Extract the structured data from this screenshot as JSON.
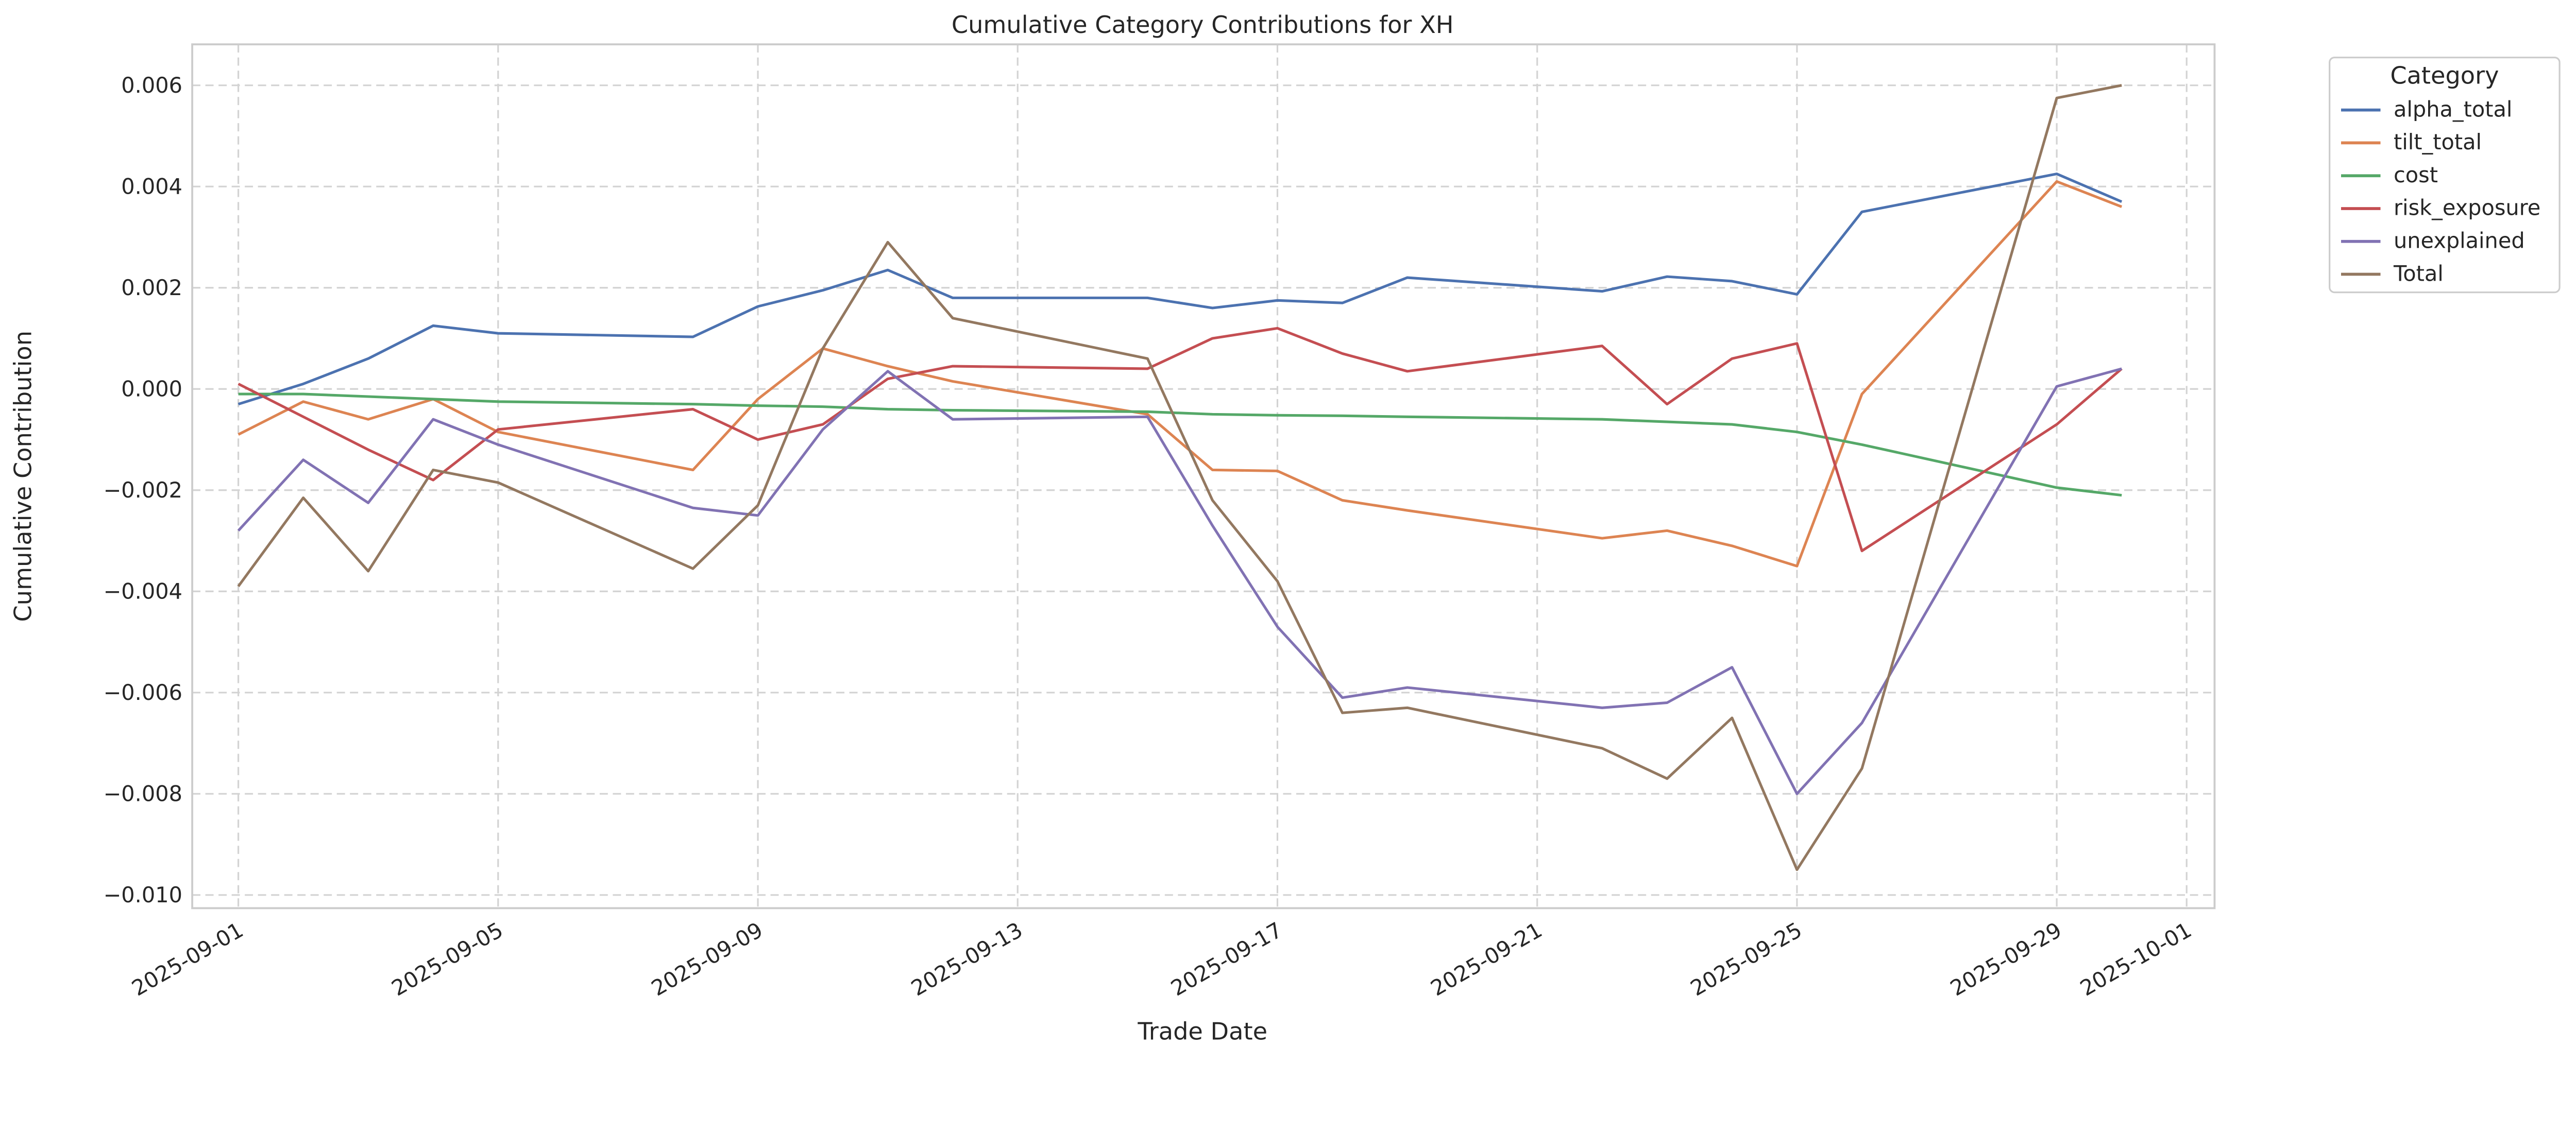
{
  "chart_data": {
    "type": "line",
    "title": "Cumulative Category Contributions for XH",
    "xlabel": "Trade Date",
    "ylabel": "Cumulative Contribution",
    "ylim": [
      -0.01026,
      0.00681
    ],
    "xlim": [
      "2025-08-31",
      "2025-10-01"
    ],
    "grid": true,
    "legend": {
      "title": "Category",
      "placement": "outside-top-right"
    },
    "x_ticks": [
      "2025-09-01",
      "2025-09-05",
      "2025-09-09",
      "2025-09-13",
      "2025-09-17",
      "2025-09-21",
      "2025-09-25",
      "2025-09-29",
      "2025-10-01"
    ],
    "y_ticks": [
      0.006,
      0.004,
      0.002,
      0.0,
      -0.002,
      -0.004,
      -0.006,
      -0.008,
      -0.01
    ],
    "y_tick_labels": [
      "0.006",
      "0.004",
      "0.002",
      "0.000",
      "−0.002",
      "−0.004",
      "−0.006",
      "−0.008",
      "−0.010"
    ],
    "x": [
      "2025-09-01",
      "2025-09-02",
      "2025-09-03",
      "2025-09-04",
      "2025-09-05",
      "2025-09-08",
      "2025-09-09",
      "2025-09-10",
      "2025-09-11",
      "2025-09-12",
      "2025-09-15",
      "2025-09-16",
      "2025-09-17",
      "2025-09-18",
      "2025-09-19",
      "2025-09-22",
      "2025-09-23",
      "2025-09-24",
      "2025-09-25",
      "2025-09-26",
      "2025-09-29",
      "2025-09-30"
    ],
    "series": [
      {
        "name": "alpha_total",
        "color": "#4c72b0",
        "values": [
          -0.0003,
          0.0001,
          0.0006,
          0.00125,
          0.0011,
          0.00103,
          0.00163,
          0.00195,
          0.00235,
          0.0018,
          0.0018,
          0.0016,
          0.00175,
          0.0017,
          0.0022,
          0.00193,
          0.00222,
          0.00213,
          0.00187,
          0.0035,
          0.00425,
          0.0037
        ]
      },
      {
        "name": "tilt_total",
        "color": "#dd8452",
        "values": [
          -0.0009,
          -0.00025,
          -0.0006,
          -0.0002,
          -0.00085,
          -0.0016,
          -0.0002,
          0.0008,
          0.00045,
          0.00015,
          -0.0005,
          -0.0016,
          -0.00162,
          -0.0022,
          -0.0024,
          -0.00295,
          -0.0028,
          -0.0031,
          -0.0035,
          -0.0001,
          0.0041,
          0.0036
        ]
      },
      {
        "name": "cost",
        "color": "#55a868",
        "values": [
          -0.0001,
          -0.0001,
          -0.00015,
          -0.0002,
          -0.00025,
          -0.0003,
          -0.00033,
          -0.00035,
          -0.0004,
          -0.00042,
          -0.00045,
          -0.0005,
          -0.00052,
          -0.00053,
          -0.00055,
          -0.0006,
          -0.00065,
          -0.0007,
          -0.00085,
          -0.0011,
          -0.00195,
          -0.0021
        ]
      },
      {
        "name": "risk_exposure",
        "color": "#c44e52",
        "values": [
          0.0001,
          -0.00055,
          -0.0012,
          -0.0018,
          -0.0008,
          -0.0004,
          -0.001,
          -0.0007,
          0.0002,
          0.00045,
          0.0004,
          0.001,
          0.0012,
          0.0007,
          0.00035,
          0.00085,
          -0.0003,
          0.0006,
          0.0009,
          -0.0032,
          -0.0007,
          0.0004
        ]
      },
      {
        "name": "unexplained",
        "color": "#8172b3",
        "values": [
          -0.0028,
          -0.0014,
          -0.00225,
          -0.0006,
          -0.0011,
          -0.00235,
          -0.0025,
          -0.0008,
          0.00035,
          -0.0006,
          -0.00055,
          -0.0027,
          -0.0047,
          -0.0061,
          -0.0059,
          -0.0063,
          -0.0062,
          -0.0055,
          -0.008,
          -0.0066,
          5e-05,
          0.0004
        ]
      },
      {
        "name": "Total",
        "color": "#937860",
        "values": [
          -0.0039,
          -0.00215,
          -0.0036,
          -0.0016,
          -0.00185,
          -0.00355,
          -0.0023,
          0.0008,
          0.0029,
          0.0014,
          0.0006,
          -0.0022,
          -0.0038,
          -0.0064,
          -0.0063,
          -0.0071,
          -0.0077,
          -0.0065,
          -0.0095,
          -0.0075,
          0.00575,
          0.006
        ]
      }
    ]
  }
}
